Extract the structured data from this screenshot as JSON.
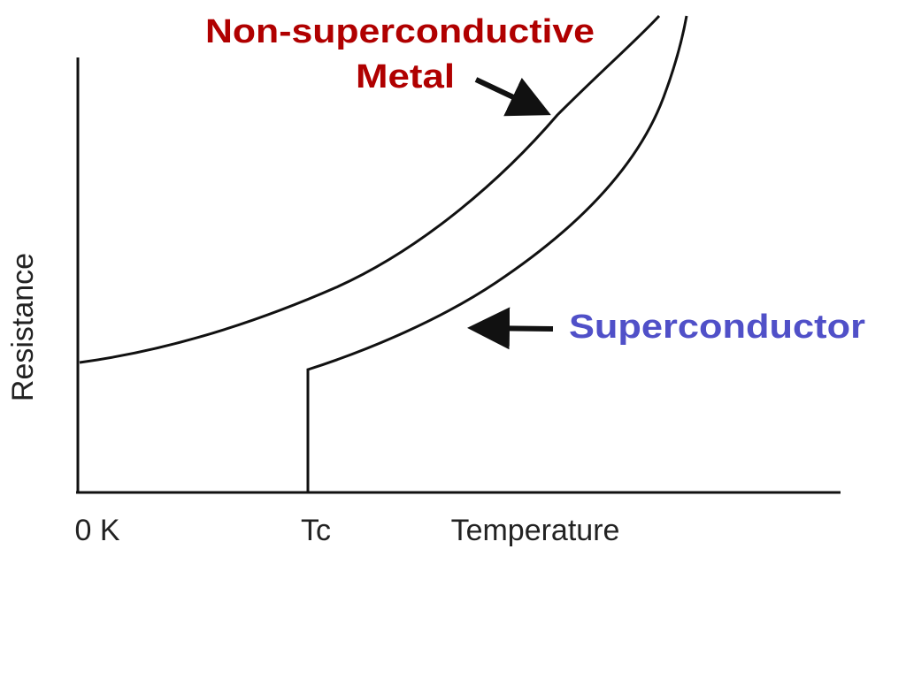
{
  "labels": {
    "metal": [
      "Non-superconductive",
      "Metal"
    ],
    "superconductor": "Superconductor"
  },
  "axes": {
    "y_label": "Resistance",
    "x_ticks": [
      "0 K",
      "Tc"
    ],
    "x_label": "Temperature"
  }
}
